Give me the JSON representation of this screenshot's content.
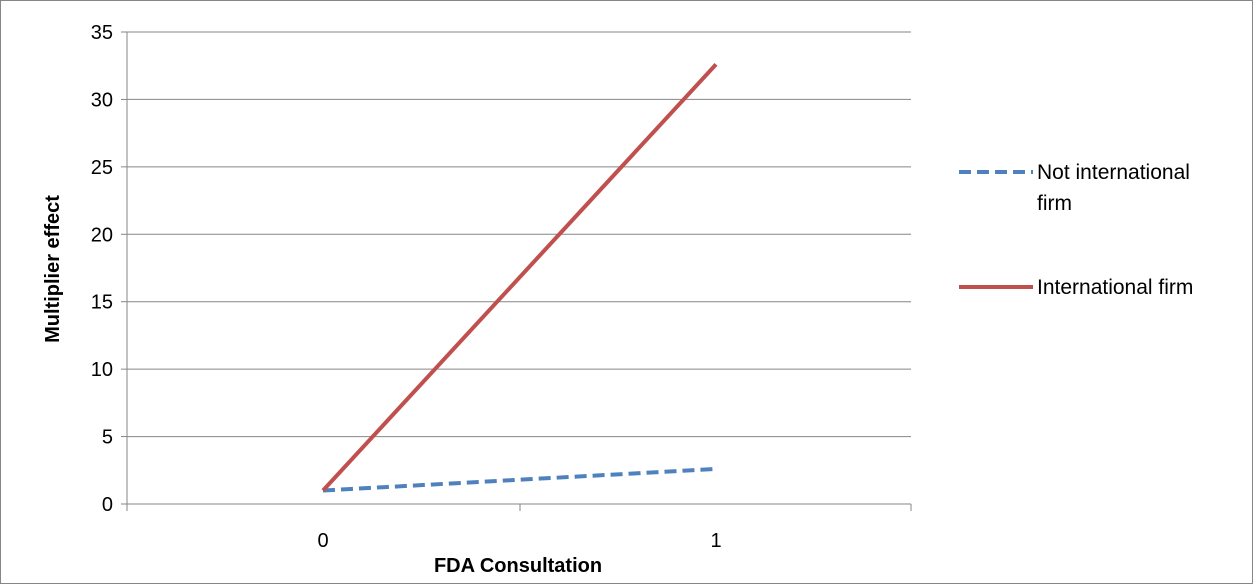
{
  "chart_data": {
    "type": "line",
    "title": "",
    "xlabel": "FDA Consultation",
    "ylabel": "Multiplier effect",
    "categories": [
      "0",
      "1"
    ],
    "ylim": [
      0,
      35
    ],
    "y_ticks": [
      "0",
      "5",
      "10",
      "15",
      "20",
      "25",
      "30",
      "35"
    ],
    "grid": true,
    "legend_position": "right",
    "series": [
      {
        "name": "Not international firm",
        "legend_lines": [
          "Not international",
          "firm"
        ],
        "values": [
          1.0,
          2.6
        ],
        "color": "#4F81BD",
        "style": "dashed"
      },
      {
        "name": "International firm",
        "legend_lines": [
          "International firm"
        ],
        "values": [
          1.0,
          32.6
        ],
        "color": "#C0504D",
        "style": "solid"
      }
    ]
  }
}
